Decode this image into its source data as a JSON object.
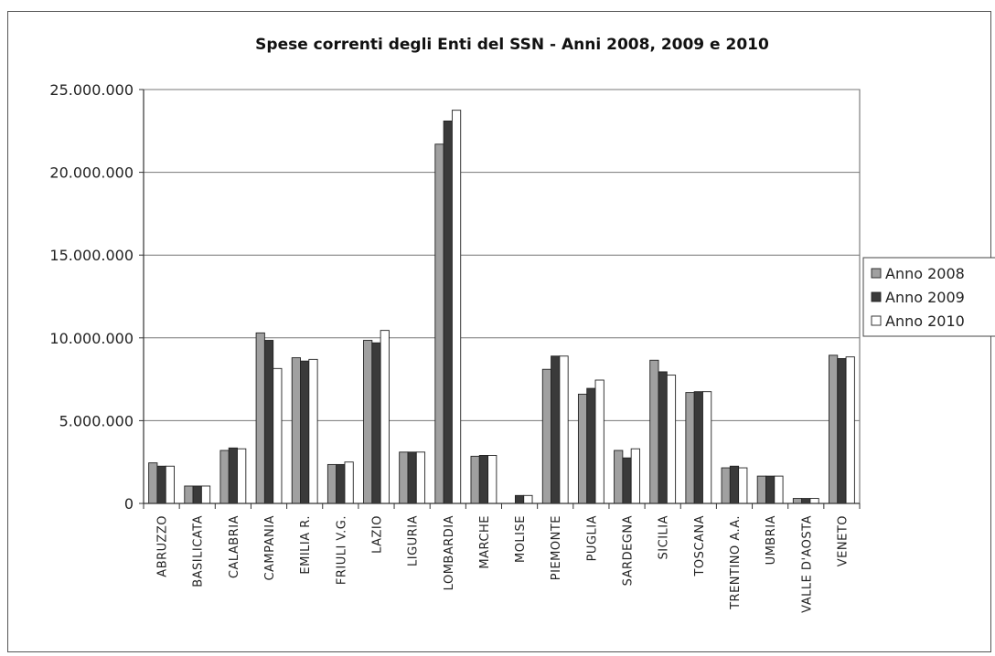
{
  "chart_data": {
    "type": "bar",
    "title": "Spese correnti degli Enti del SSN - Anni 2008, 2009 e 2010",
    "xlabel": "",
    "ylabel": "",
    "ylim": [
      0,
      25000000
    ],
    "yticks": [
      "0",
      "5.000.000",
      "10.000.000",
      "15.000.000",
      "20.000.000",
      "25.000.000"
    ],
    "grid": true,
    "legend_position": "right",
    "categories": [
      "ABRUZZO",
      "BASILICATA",
      "CALABRIA",
      "CAMPANIA",
      "EMILIA R.",
      "FRIULI V.G.",
      "LAZIO",
      "LIGURIA",
      "LOMBARDIA",
      "MARCHE",
      "MOLISE",
      "PIEMONTE",
      "PUGLIA",
      "SARDEGNA",
      "SICILIA",
      "TOSCANA",
      "TRENTINO A.A.",
      "UMBRIA",
      "VALLE D'AOSTA",
      "VENETO"
    ],
    "series": [
      {
        "name": "Anno 2008",
        "color": "#a0a0a0",
        "values": [
          2450000,
          1050000,
          3200000,
          10300000,
          8800000,
          2350000,
          9850000,
          3100000,
          21700000,
          2850000,
          0,
          8100000,
          6600000,
          3200000,
          8650000,
          6700000,
          2150000,
          1650000,
          300000,
          8950000
        ]
      },
      {
        "name": "Anno 2009",
        "color": "#3a3a3a",
        "values": [
          2250000,
          1050000,
          3350000,
          9850000,
          8600000,
          2350000,
          9700000,
          3100000,
          23100000,
          2900000,
          480000,
          8900000,
          6950000,
          2750000,
          7950000,
          6750000,
          2250000,
          1650000,
          300000,
          8750000
        ]
      },
      {
        "name": "Anno 2010",
        "color": "#ffffff",
        "values": [
          2250000,
          1050000,
          3300000,
          8150000,
          8700000,
          2500000,
          10450000,
          3100000,
          23750000,
          2900000,
          480000,
          8900000,
          7450000,
          3300000,
          7750000,
          6750000,
          2150000,
          1650000,
          300000,
          8850000
        ]
      }
    ]
  }
}
